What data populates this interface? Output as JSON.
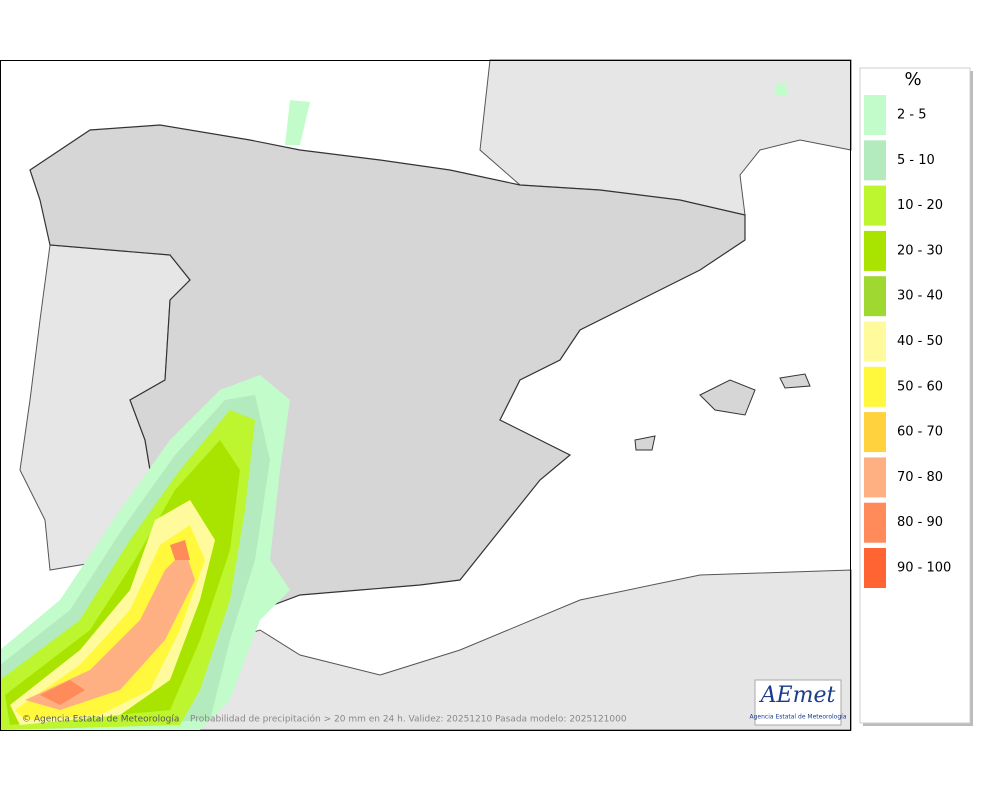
{
  "legend": {
    "title": "%",
    "items": [
      {
        "label": "2 - 5",
        "color": "#c2fccb"
      },
      {
        "label": "5 - 10",
        "color": "#b4ebbe"
      },
      {
        "label": "10 - 20",
        "color": "#bdf52e"
      },
      {
        "label": "20 - 30",
        "color": "#a8e400"
      },
      {
        "label": "30 - 40",
        "color": "#a0d832"
      },
      {
        "label": "40 - 50",
        "color": "#fffa9c"
      },
      {
        "label": "50 - 60",
        "color": "#fff83c"
      },
      {
        "label": "60 - 70",
        "color": "#ffd23e"
      },
      {
        "label": "70 - 80",
        "color": "#ffb082"
      },
      {
        "label": "80 - 90",
        "color": "#ff8a5a"
      },
      {
        "label": "90 - 100",
        "color": "#ff6432"
      }
    ]
  },
  "credit": "© Agencia Estatal de Meteorología",
  "footer": "Probabilidad de precipitación > 20 mm en 24 h. Validez: 20251210 Pasada modelo: 2025121000",
  "logo": {
    "name": "AEmet",
    "subtitle": "Agencia Estatal de Meteorología"
  }
}
